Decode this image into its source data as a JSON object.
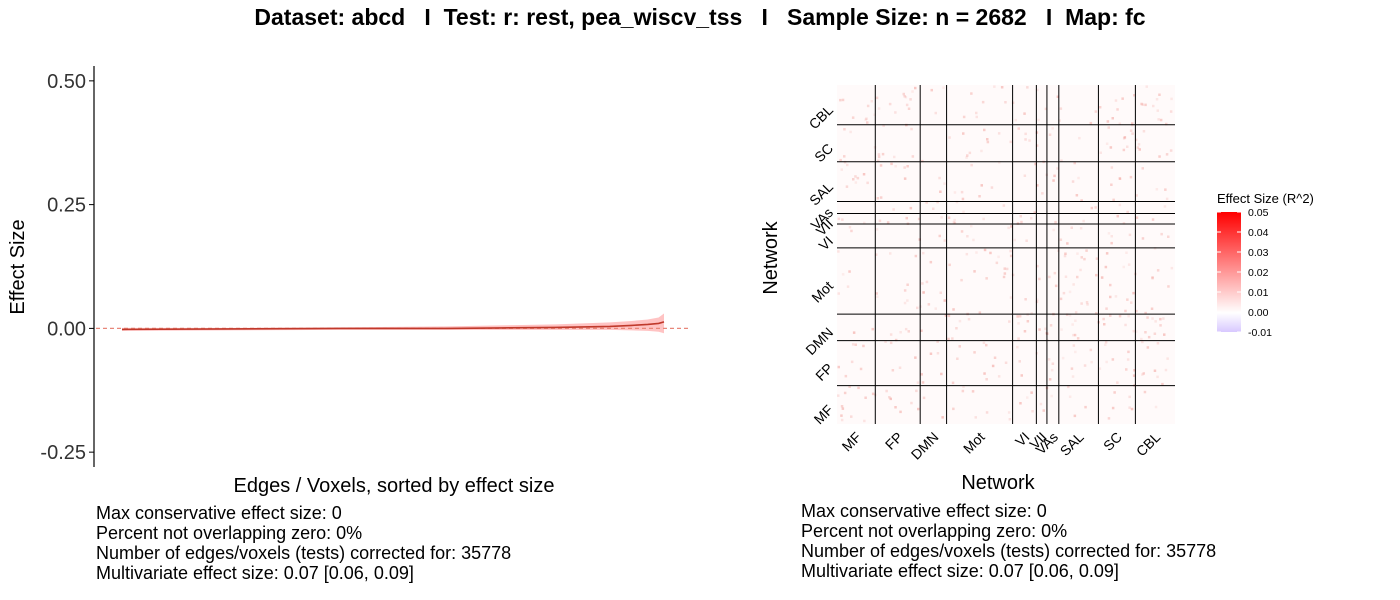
{
  "title": "Dataset: abcd   I  Test: r: rest, pea_wiscv_tss   I   Sample Size: n = 2682   I  Map: fc",
  "colors": {
    "line": "#c0392b",
    "ribbon": "#ffb8b8",
    "zero_line": "#e8877a",
    "grid_lines": "#000000",
    "scale_high": "#ff0000",
    "scale_mid": "#ffffff",
    "scale_low": "#d8c8ff"
  },
  "chart_data": [
    {
      "type": "line",
      "xlabel": "Edges / Voxels, sorted by effect size",
      "ylabel": "Effect Size",
      "ylim": [
        -0.28,
        0.53
      ],
      "yticks": [
        {
          "value": 0.5,
          "label": "0.50"
        },
        {
          "value": 0.25,
          "label": "0.25"
        },
        {
          "value": 0.0,
          "label": "0.00"
        },
        {
          "value": -0.25,
          "label": "-0.25"
        }
      ],
      "n_points": 35778,
      "series": [
        {
          "x_frac": [
            0,
            0.2,
            0.4,
            0.6,
            0.7,
            0.8,
            0.85,
            0.9,
            0.94,
            0.97,
            0.99,
            1.0
          ],
          "y": [
            -0.002,
            -0.001,
            0.0,
            0.0,
            0.001,
            0.002,
            0.003,
            0.004,
            0.006,
            0.008,
            0.01,
            0.013
          ],
          "upper": [
            0.001,
            0.001,
            0.002,
            0.004,
            0.006,
            0.008,
            0.01,
            0.012,
            0.015,
            0.018,
            0.022,
            0.03
          ],
          "lower": [
            -0.005,
            -0.004,
            -0.003,
            -0.003,
            -0.003,
            -0.003,
            -0.003,
            -0.003,
            -0.004,
            -0.005,
            -0.007,
            -0.01
          ]
        }
      ],
      "reference_line": 0,
      "stats": [
        "Max conservative effect size: 0",
        "Percent not overlapping zero: 0%",
        "Number of edges/voxels (tests) corrected for: 35778",
        "Multivariate effect size: 0.07 [0.06, 0.09]"
      ]
    },
    {
      "type": "heatmap",
      "xlabel": "Network",
      "ylabel": "Network",
      "x_networks": [
        "MF",
        "FP",
        "DMN",
        "Mot",
        "VI",
        "VII",
        "VAs",
        "SAL",
        "SC",
        "CBL"
      ],
      "y_networks": [
        "MF",
        "FP",
        "DMN",
        "Mot",
        "VI",
        "VII",
        "VAs",
        "SAL",
        "SC",
        "CBL"
      ],
      "network_sizes": [
        29,
        34,
        20,
        50,
        18,
        8,
        9,
        30,
        28,
        30
      ],
      "legend": {
        "title": "Effect Size (R^2)",
        "ticks": [
          "0.05",
          "0.04",
          "0.03",
          "0.02",
          "0.01",
          "0.00",
          "-0.01"
        ],
        "range": [
          -0.01,
          0.05
        ]
      },
      "stats": [
        "Max conservative effect size: 0",
        "Percent not overlapping zero: 0%",
        "Number of edges/voxels (tests) corrected for: 35778",
        "Multivariate effect size: 0.07 [0.06, 0.09]"
      ]
    }
  ]
}
